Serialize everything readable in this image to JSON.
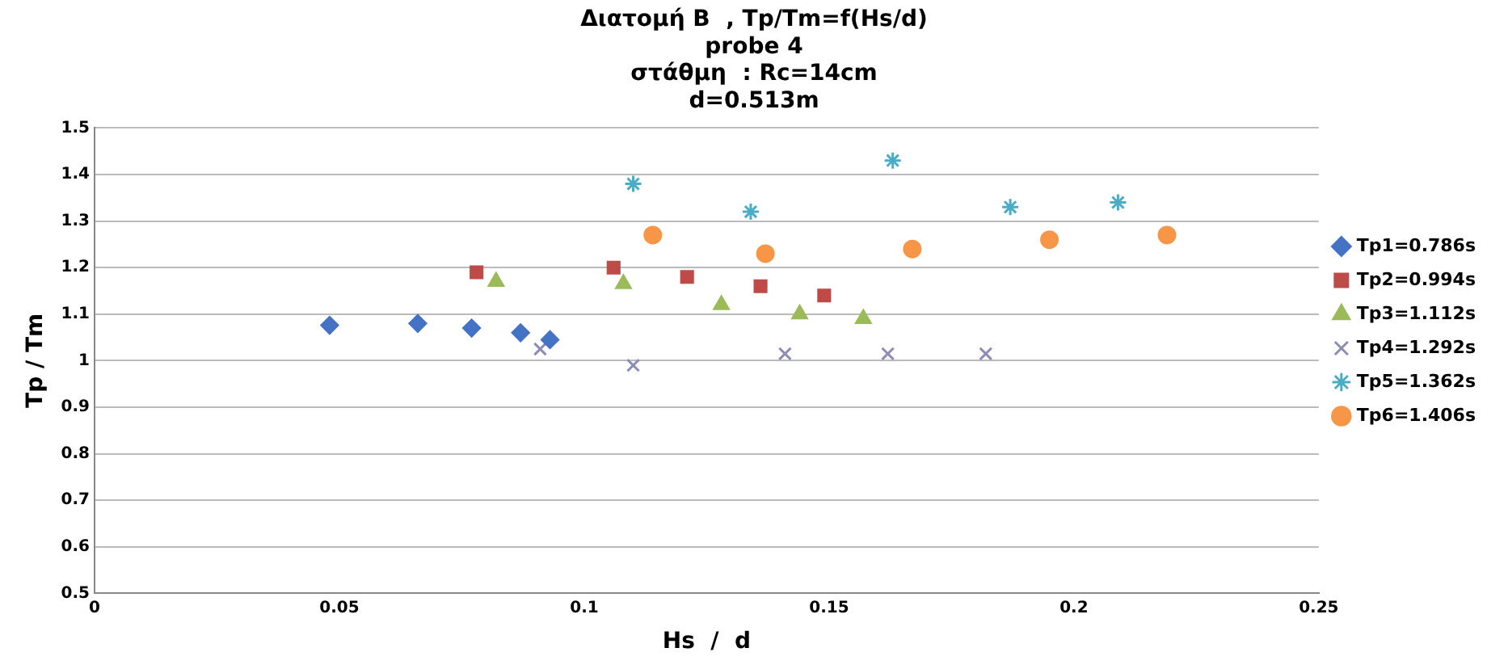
{
  "chart_data": {
    "type": "scatter",
    "title": "Διατομή Β  , Tp/Tm=f(Hs/d)\nprobe 4\nστάθμη  : Rc=14cm\nd=0.513m",
    "xlabel": "Hs  /  d",
    "ylabel": "Tp / Tm",
    "xlim": [
      0,
      0.25
    ],
    "xticks": [
      0,
      0.05,
      0.1,
      0.15,
      0.2,
      0.25
    ],
    "ylim": [
      0.5,
      1.5
    ],
    "yticks": [
      0.5,
      0.6,
      0.7,
      0.8,
      0.9,
      1,
      1.1,
      1.2,
      1.3,
      1.4,
      1.5
    ],
    "grid": "y",
    "legend": "right",
    "series": [
      {
        "name": "Tp1=0.786s",
        "color": "#4472c4",
        "x": [
          0.048,
          0.066,
          0.077,
          0.087,
          0.093
        ],
        "values": [
          1.076,
          1.08,
          1.07,
          1.06,
          1.045
        ]
      },
      {
        "name": "Tp2=0.994s",
        "color": "#be4b48",
        "x": [
          0.078,
          0.106,
          0.121,
          0.136,
          0.149
        ],
        "values": [
          1.19,
          1.2,
          1.18,
          1.16,
          1.14
        ]
      },
      {
        "name": "Tp3=1.112s",
        "color": "#9bbb59",
        "x": [
          0.082,
          0.108,
          0.128,
          0.144,
          0.157
        ],
        "values": [
          1.17,
          1.165,
          1.12,
          1.1,
          1.09
        ]
      },
      {
        "name": "Tp4=1.292s",
        "color": "#8c8cb4",
        "x": [
          0.091,
          0.11,
          0.141,
          0.162,
          0.182
        ],
        "values": [
          1.025,
          0.99,
          1.015,
          1.015,
          1.015
        ]
      },
      {
        "name": "Tp5=1.362s",
        "color": "#4bacc6",
        "x": [
          0.11,
          0.134,
          0.163,
          0.187,
          0.209
        ],
        "values": [
          1.38,
          1.32,
          1.43,
          1.33,
          1.34
        ]
      },
      {
        "name": "Tp6=1.406s",
        "color": "#f79646",
        "x": [
          0.114,
          0.137,
          0.167,
          0.195,
          0.219
        ],
        "values": [
          1.27,
          1.23,
          1.24,
          1.26,
          1.27
        ]
      }
    ]
  }
}
